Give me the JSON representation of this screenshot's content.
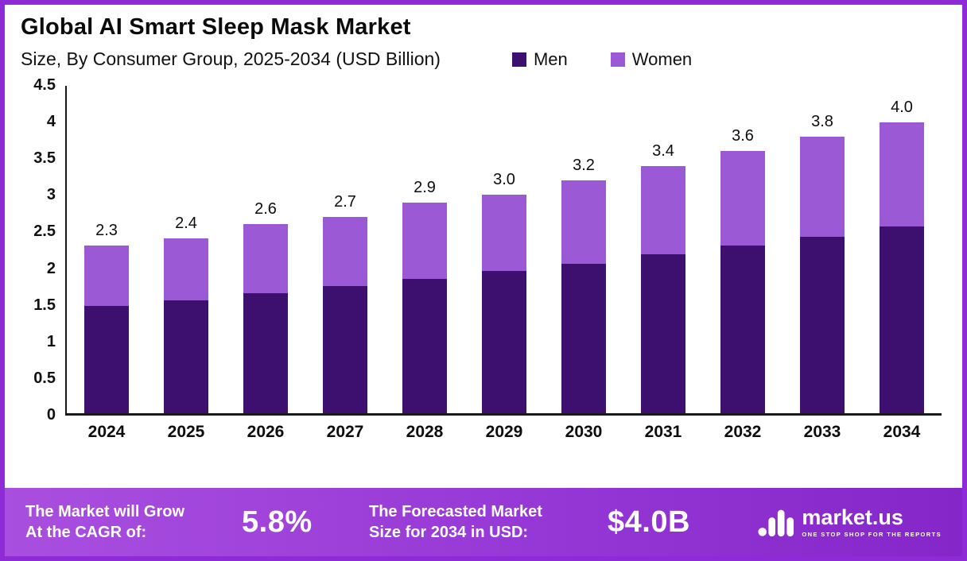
{
  "header": {
    "title": "Global AI Smart Sleep Mask Market",
    "subtitle": "Size, By Consumer Group, 2025-2034 (USD Billion)"
  },
  "legend": [
    {
      "label": "Men",
      "color": "#3D1070"
    },
    {
      "label": "Women",
      "color": "#9C59D5"
    }
  ],
  "chart_data": {
    "type": "bar",
    "stacked": true,
    "title": "Global AI Smart Sleep Mask Market Size, By Consumer Group, 2025-2034 (USD Billion)",
    "categories": [
      "2024",
      "2025",
      "2026",
      "2027",
      "2028",
      "2029",
      "2030",
      "2031",
      "2032",
      "2033",
      "2034"
    ],
    "series": [
      {
        "name": "Men",
        "color": "#3D1070",
        "values": [
          1.47,
          1.55,
          1.65,
          1.75,
          1.85,
          1.95,
          2.05,
          2.18,
          2.3,
          2.43,
          2.57
        ]
      },
      {
        "name": "Women",
        "color": "#9C59D5",
        "values": [
          0.83,
          0.85,
          0.95,
          0.95,
          1.05,
          1.05,
          1.15,
          1.22,
          1.3,
          1.37,
          1.43
        ]
      }
    ],
    "totals": [
      "2.3",
      "2.4",
      "2.6",
      "2.7",
      "2.9",
      "3.0",
      "3.2",
      "3.4",
      "3.6",
      "3.8",
      "4.0"
    ],
    "ylim": [
      0,
      4.5
    ],
    "yticks": [
      "4.5",
      "4",
      "3.5",
      "3",
      "2.5",
      "2",
      "1.5",
      "1",
      "0.5",
      "0"
    ],
    "grid": false,
    "legend_position": "top"
  },
  "footer": {
    "cagr_line1": "The Market will Grow",
    "cagr_line2": "At the CAGR of:",
    "cagr_value": "5.8%",
    "forecast_line1": "The Forecasted Market",
    "forecast_line2": "Size for 2034 in USD:",
    "forecast_value": "$4.0B",
    "logo_text": "market.us",
    "logo_tagline": "ONE STOP SHOP FOR THE REPORTS"
  }
}
